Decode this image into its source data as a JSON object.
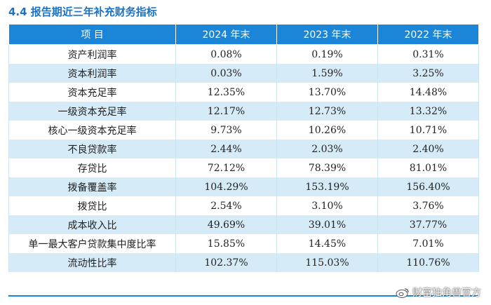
{
  "section_title": "4.4 报告期近三年补充财务指标",
  "table": {
    "headers": [
      "项 目",
      "2024 年末",
      "2023 年末",
      "2022 年末"
    ],
    "rows": [
      {
        "label": "资产利润率",
        "v2024": "0.08%",
        "v2023": "0.19%",
        "v2022": "0.31%"
      },
      {
        "label": "资本利润率",
        "v2024": "0.03%",
        "v2023": "1.59%",
        "v2022": "3.25%"
      },
      {
        "label": "资本充足率",
        "v2024": "12.35%",
        "v2023": "13.70%",
        "v2022": "14.48%"
      },
      {
        "label": "一级资本充足率",
        "v2024": "12.17%",
        "v2023": "12.73%",
        "v2022": "13.32%"
      },
      {
        "label": "核心一级资本充足率",
        "v2024": "9.73%",
        "v2023": "10.26%",
        "v2022": "10.71%"
      },
      {
        "label": "不良贷款率",
        "v2024": "2.44%",
        "v2023": "2.03%",
        "v2022": "2.40%"
      },
      {
        "label": "存贷比",
        "v2024": "72.12%",
        "v2023": "78.39%",
        "v2022": "81.01%"
      },
      {
        "label": "拨备覆盖率",
        "v2024": "104.29%",
        "v2023": "153.19%",
        "v2022": "156.40%"
      },
      {
        "label": "拨贷比",
        "v2024": "2.54%",
        "v2023": "3.10%",
        "v2022": "3.76%"
      },
      {
        "label": "成本收入比",
        "v2024": "49.69%",
        "v2023": "39.01%",
        "v2022": "37.77%"
      },
      {
        "label": "单一最大客户贷款集中度比率",
        "v2024": "15.85%",
        "v2023": "14.45%",
        "v2022": "7.01%"
      },
      {
        "label": "流动性比率",
        "v2024": "102.37%",
        "v2023": "115.03%",
        "v2022": "110.76%"
      }
    ]
  },
  "watermark": {
    "text": "财富独角兽官方",
    "icon": "weibo-icon"
  },
  "colors": {
    "title": "#1a73c6",
    "header_bg": "#1b85d8",
    "stripe": "#d6ebf8"
  }
}
